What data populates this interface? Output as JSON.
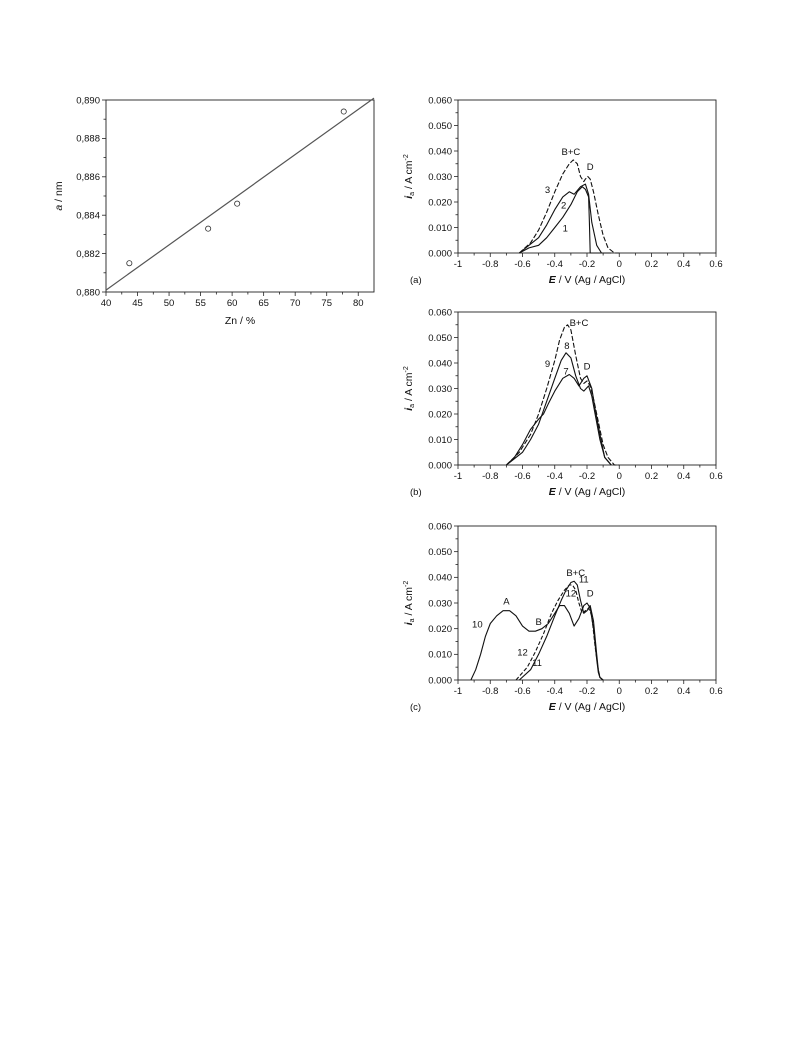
{
  "chart_data": [
    {
      "id": "left",
      "type": "scatter",
      "xlabel": "Zn / %",
      "ylabel_italic": "a",
      "ylabel_rest": " / nm",
      "xlim": [
        40,
        82.5
      ],
      "ylim": [
        0.88,
        0.89
      ],
      "xticks": [
        "40",
        "45",
        "50",
        "55",
        "60",
        "65",
        "70",
        "75",
        "80"
      ],
      "yticks": [
        "0,880",
        "0,882",
        "0,884",
        "0,886",
        "0,888",
        "0,890"
      ],
      "grid": false,
      "points": [
        {
          "x": 43.7,
          "y": 0.8815
        },
        {
          "x": 56.2,
          "y": 0.8833
        },
        {
          "x": 60.8,
          "y": 0.8846
        },
        {
          "x": 77.7,
          "y": 0.8894
        }
      ],
      "fit_line": [
        [
          40.0,
          0.8801
        ],
        [
          82.5,
          0.8901
        ]
      ]
    },
    {
      "id": "a",
      "type": "line",
      "panel_label": "(a)",
      "xlabel_italic": "E",
      "xlabel_rest": " / V (Ag / AgCl)",
      "ylabel_italic": "i",
      "ylabel_sub": "a",
      "ylabel_rest": " / A cm",
      "ylabel_sup": "-2",
      "xlim": [
        -1,
        0.6
      ],
      "ylim": [
        0,
        0.06
      ],
      "xticks": [
        "-1",
        "-0.8",
        "-0.6",
        "-0.4",
        "-0.2",
        "0",
        "0.2",
        "0.4",
        "0.6"
      ],
      "yticks": [
        "0.000",
        "0.010",
        "0.020",
        "0.030",
        "0.040",
        "0.050",
        "0.060"
      ],
      "series": [
        {
          "name": "1",
          "dash": "",
          "x": [
            -0.62,
            -0.56,
            -0.5,
            -0.45,
            -0.4,
            -0.35,
            -0.3,
            -0.26,
            -0.23,
            -0.21,
            -0.19,
            -0.185,
            -0.18,
            -0.17,
            -0.14,
            -0.1,
            -0.05
          ],
          "y": [
            0.0,
            0.002,
            0.003,
            0.006,
            0.01,
            0.014,
            0.019,
            0.024,
            0.026,
            0.025,
            0.022,
            0.012,
            0.0,
            0.0,
            0.0,
            0.0,
            0.0
          ]
        },
        {
          "name": "2",
          "dash": "",
          "x": [
            -0.62,
            -0.56,
            -0.5,
            -0.45,
            -0.4,
            -0.35,
            -0.31,
            -0.28,
            -0.24,
            -0.21,
            -0.19,
            -0.17,
            -0.14,
            -0.11,
            -0.08
          ],
          "y": [
            0.0,
            0.003,
            0.006,
            0.011,
            0.017,
            0.022,
            0.024,
            0.023,
            0.026,
            0.027,
            0.023,
            0.012,
            0.003,
            0.0,
            0.0
          ]
        },
        {
          "name": "3",
          "dash": "5,2",
          "x": [
            -0.62,
            -0.55,
            -0.5,
            -0.45,
            -0.4,
            -0.35,
            -0.31,
            -0.285,
            -0.26,
            -0.24,
            -0.22,
            -0.21,
            -0.195,
            -0.18,
            -0.16,
            -0.13,
            -0.1,
            -0.07,
            -0.03,
            0.0
          ],
          "y": [
            0.0,
            0.004,
            0.009,
            0.016,
            0.024,
            0.031,
            0.035,
            0.0365,
            0.035,
            0.03,
            0.028,
            0.029,
            0.03,
            0.029,
            0.024,
            0.015,
            0.007,
            0.002,
            0.0,
            0.0
          ]
        }
      ],
      "annotations": [
        {
          "text": "B+C",
          "x": -0.3,
          "y": 0.0385
        },
        {
          "text": "D",
          "x": -0.18,
          "y": 0.0325
        },
        {
          "text": "3",
          "x": -0.445,
          "y": 0.0235
        },
        {
          "text": "2",
          "x": -0.345,
          "y": 0.0175
        },
        {
          "text": "1",
          "x": -0.335,
          "y": 0.0085
        }
      ]
    },
    {
      "id": "b",
      "type": "line",
      "panel_label": "(b)",
      "xlabel_italic": "E",
      "xlabel_rest": " / V (Ag / AgCl)",
      "ylabel_italic": "i",
      "ylabel_sub": "a",
      "ylabel_rest": " / A cm",
      "ylabel_sup": "-2",
      "xlim": [
        -1,
        0.6
      ],
      "ylim": [
        0,
        0.06
      ],
      "xticks": [
        "-1",
        "-0.8",
        "-0.6",
        "-0.4",
        "-0.2",
        "0",
        "0.2",
        "0.4",
        "0.6"
      ],
      "yticks": [
        "0.000",
        "0.010",
        "0.020",
        "0.030",
        "0.040",
        "0.050",
        "0.060"
      ],
      "series": [
        {
          "name": "7",
          "dash": "",
          "x": [
            -0.7,
            -0.65,
            -0.6,
            -0.55,
            -0.5,
            -0.47,
            -0.44,
            -0.4,
            -0.35,
            -0.31,
            -0.28,
            -0.25,
            -0.22,
            -0.2,
            -0.17,
            -0.15,
            -0.12,
            -0.09,
            -0.05
          ],
          "y": [
            0.0,
            0.003,
            0.008,
            0.014,
            0.018,
            0.02,
            0.024,
            0.029,
            0.034,
            0.0355,
            0.034,
            0.031,
            0.034,
            0.035,
            0.03,
            0.022,
            0.012,
            0.003,
            0.0
          ]
        },
        {
          "name": "8",
          "dash": "",
          "x": [
            -0.7,
            -0.6,
            -0.55,
            -0.5,
            -0.45,
            -0.4,
            -0.36,
            -0.33,
            -0.3,
            -0.27,
            -0.24,
            -0.22,
            -0.19,
            -0.17,
            -0.15,
            -0.12,
            -0.09,
            -0.05
          ],
          "y": [
            0.0,
            0.005,
            0.01,
            0.016,
            0.025,
            0.034,
            0.041,
            0.044,
            0.042,
            0.035,
            0.03,
            0.029,
            0.031,
            0.027,
            0.02,
            0.01,
            0.003,
            0.0
          ]
        },
        {
          "name": "9",
          "dash": "5,2",
          "x": [
            -0.7,
            -0.62,
            -0.55,
            -0.5,
            -0.45,
            -0.4,
            -0.37,
            -0.34,
            -0.32,
            -0.3,
            -0.27,
            -0.24,
            -0.22,
            -0.2,
            -0.18,
            -0.16,
            -0.13,
            -0.1,
            -0.07,
            -0.03,
            0.0
          ],
          "y": [
            0.0,
            0.005,
            0.012,
            0.02,
            0.03,
            0.041,
            0.049,
            0.054,
            0.055,
            0.053,
            0.043,
            0.034,
            0.032,
            0.033,
            0.031,
            0.026,
            0.017,
            0.008,
            0.003,
            0.0,
            0.0
          ]
        }
      ],
      "annotations": [
        {
          "text": "B+C",
          "x": -0.25,
          "y": 0.0545
        },
        {
          "text": "D",
          "x": -0.2,
          "y": 0.0375
        },
        {
          "text": "9",
          "x": -0.445,
          "y": 0.0385
        },
        {
          "text": "8",
          "x": -0.325,
          "y": 0.0455
        },
        {
          "text": "7",
          "x": -0.33,
          "y": 0.0355
        }
      ]
    },
    {
      "id": "c",
      "type": "line",
      "panel_label": "(c)",
      "xlabel_italic": "E",
      "xlabel_rest": " / V (Ag / AgCl)",
      "ylabel_italic": "i",
      "ylabel_sub": "a",
      "ylabel_rest": " / A cm",
      "ylabel_sup": "-2",
      "xlim": [
        -1,
        0.6
      ],
      "ylim": [
        0,
        0.06
      ],
      "xticks": [
        "-1",
        "-0.8",
        "-0.6",
        "-0.4",
        "-0.2",
        "0",
        "0.2",
        "0.4",
        "0.6"
      ],
      "yticks": [
        "0.000",
        "0.010",
        "0.020",
        "0.030",
        "0.040",
        "0.050",
        "0.060"
      ],
      "series": [
        {
          "name": "10",
          "dash": "",
          "x": [
            -0.92,
            -0.89,
            -0.86,
            -0.83,
            -0.8,
            -0.76,
            -0.72,
            -0.68,
            -0.64,
            -0.6,
            -0.56,
            -0.52,
            -0.48,
            -0.44,
            -0.4,
            -0.37,
            -0.34,
            -0.31,
            -0.28,
            -0.25,
            -0.22,
            -0.2,
            -0.18,
            -0.16,
            -0.14,
            -0.13,
            -0.12,
            -0.1
          ],
          "y": [
            0.0,
            0.004,
            0.01,
            0.017,
            0.022,
            0.025,
            0.027,
            0.027,
            0.025,
            0.021,
            0.019,
            0.019,
            0.02,
            0.022,
            0.026,
            0.029,
            0.029,
            0.026,
            0.021,
            0.024,
            0.029,
            0.03,
            0.028,
            0.02,
            0.008,
            0.003,
            0.001,
            0.0
          ]
        },
        {
          "name": "11",
          "dash": "",
          "x": [
            -0.62,
            -0.55,
            -0.5,
            -0.45,
            -0.4,
            -0.36,
            -0.33,
            -0.3,
            -0.28,
            -0.26,
            -0.24,
            -0.22,
            -0.2,
            -0.18,
            -0.16,
            -0.14,
            -0.13,
            -0.12,
            -0.1
          ],
          "y": [
            0.0,
            0.004,
            0.01,
            0.017,
            0.025,
            0.031,
            0.035,
            0.038,
            0.0385,
            0.037,
            0.031,
            0.026,
            0.027,
            0.029,
            0.023,
            0.01,
            0.004,
            0.001,
            0.0
          ]
        },
        {
          "name": "12",
          "dash": "4,2",
          "x": [
            -0.64,
            -0.57,
            -0.52,
            -0.47,
            -0.42,
            -0.38,
            -0.34,
            -0.31,
            -0.29,
            -0.27,
            -0.25,
            -0.23,
            -0.21,
            -0.19,
            -0.17,
            -0.15,
            -0.13,
            -0.12,
            -0.1
          ],
          "y": [
            0.0,
            0.005,
            0.011,
            0.018,
            0.026,
            0.031,
            0.035,
            0.037,
            0.037,
            0.035,
            0.03,
            0.026,
            0.027,
            0.028,
            0.025,
            0.013,
            0.004,
            0.001,
            0.0
          ]
        }
      ],
      "annotations": [
        {
          "text": "B+C",
          "x": -0.27,
          "y": 0.0405
        },
        {
          "text": "11",
          "x": -0.22,
          "y": 0.038
        },
        {
          "text": "12",
          "x": -0.3,
          "y": 0.0325
        },
        {
          "text": "D",
          "x": -0.18,
          "y": 0.0325
        },
        {
          "text": "A",
          "x": -0.7,
          "y": 0.0295
        },
        {
          "text": "B",
          "x": -0.5,
          "y": 0.0215
        },
        {
          "text": "10",
          "x": -0.88,
          "y": 0.0205
        },
        {
          "text": "12",
          "x": -0.6,
          "y": 0.0095
        },
        {
          "text": "11",
          "x": -0.51,
          "y": 0.0055
        }
      ]
    }
  ]
}
